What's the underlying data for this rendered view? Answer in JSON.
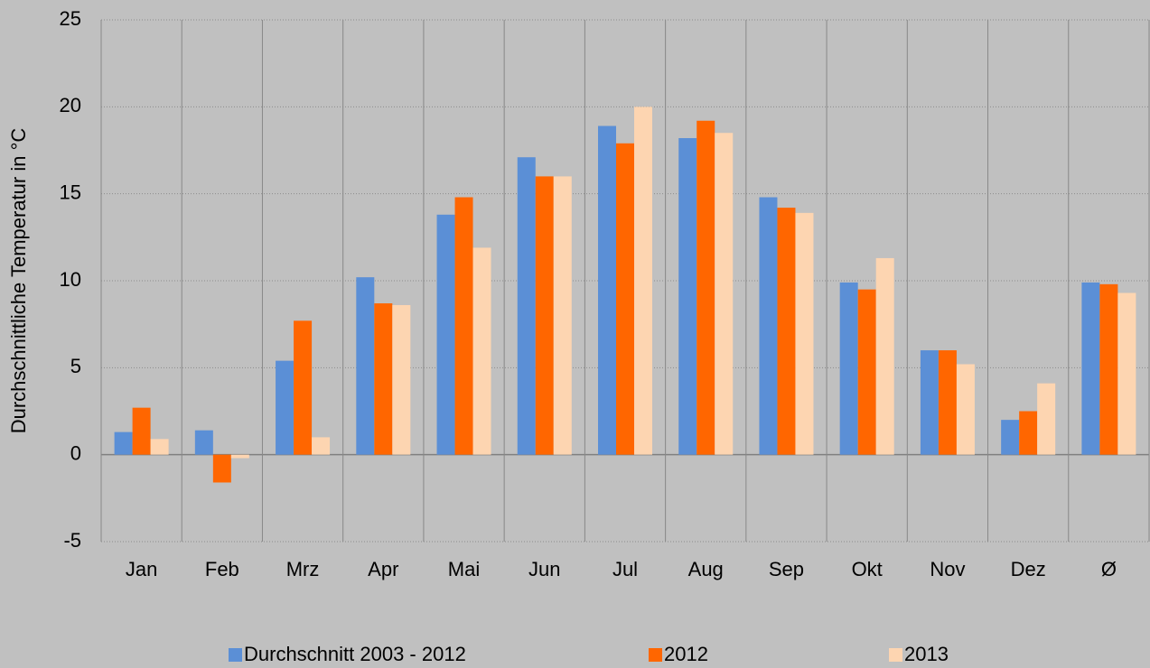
{
  "chart_data": {
    "type": "bar",
    "y_label": "Durchschnittliche Temperatur in °C",
    "categories": [
      "Jan",
      "Feb",
      "Mrz",
      "Apr",
      "Mai",
      "Jun",
      "Jul",
      "Aug",
      "Sep",
      "Okt",
      "Nov",
      "Dez",
      "Ø"
    ],
    "series": [
      {
        "name": "Durchschnitt 2003 - 2012",
        "color": "#5b8fd6",
        "values": [
          1.3,
          1.4,
          5.4,
          10.2,
          13.8,
          17.1,
          18.9,
          18.2,
          14.8,
          9.9,
          6.0,
          2.0,
          9.9
        ]
      },
      {
        "name": "2012",
        "color": "#ff6600",
        "values": [
          2.7,
          -1.6,
          7.7,
          8.7,
          14.8,
          16.0,
          17.9,
          19.2,
          14.2,
          9.5,
          6.0,
          2.5,
          9.8
        ]
      },
      {
        "name": "2013",
        "color": "#fdd5b1",
        "values": [
          0.9,
          -0.2,
          1.0,
          8.6,
          11.9,
          16.0,
          20.0,
          18.5,
          13.9,
          11.3,
          5.2,
          4.1,
          9.3
        ]
      }
    ],
    "ylim": [
      -5,
      25
    ],
    "yticks": [
      -5,
      0,
      5,
      10,
      15,
      20,
      25
    ],
    "grid": true,
    "legend": "bottom"
  }
}
